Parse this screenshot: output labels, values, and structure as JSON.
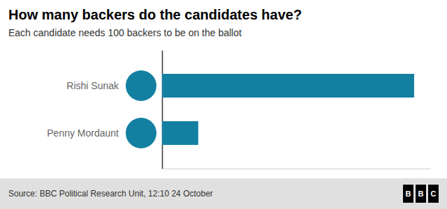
{
  "chart_data": {
    "type": "bar",
    "orientation": "horizontal",
    "title": "How many backers do the candidates have?",
    "subtitle": "Each candidate needs 100 backers to be on the ballot",
    "source": "Source: BBC Political Research Unit, 12:10 24 October",
    "logo": "BBC",
    "categories": [
      "Rishi Sunak",
      "Penny Mordaunt"
    ],
    "values": [
      188,
      27
    ],
    "color": "#1380A1",
    "xlim": [
      0,
      200
    ],
    "data_labels": true,
    "tick_labels": false
  }
}
